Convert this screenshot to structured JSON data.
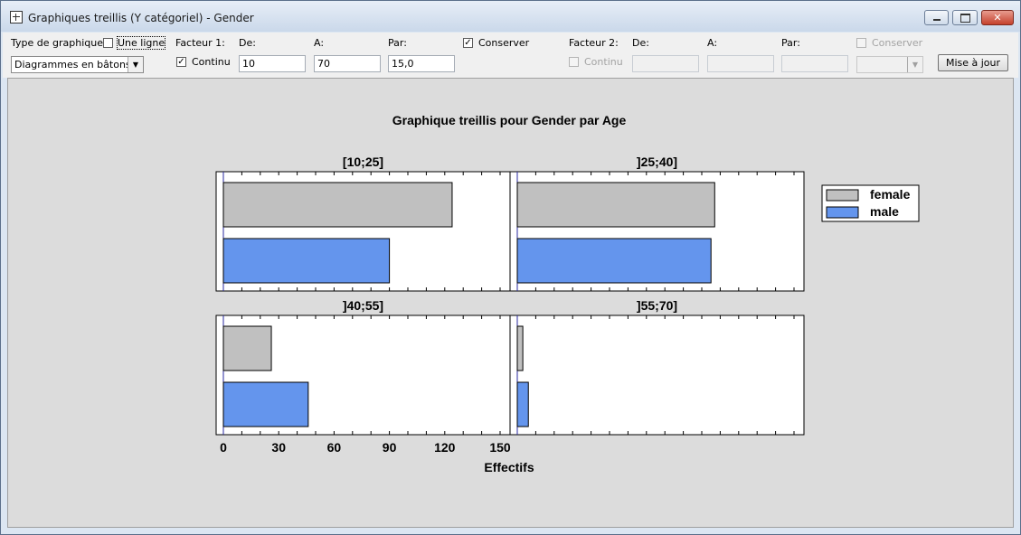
{
  "window": {
    "title": "Graphiques treillis (Y catégoriel) - Gender"
  },
  "toolbar": {
    "type_label": "Type de graphique:",
    "une_ligne_label": "Une ligne",
    "une_ligne_checked": false,
    "chart_type_value": "Diagrammes en bâtons",
    "facteur1": {
      "label": "Facteur 1:",
      "continu_label": "Continu",
      "continu_checked": true,
      "de_label": "De:",
      "de_value": "10",
      "a_label": "A:",
      "a_value": "70",
      "par_label": "Par:",
      "par_value": "15,0",
      "conserver_label": "Conserver",
      "conserver_checked": true
    },
    "facteur2": {
      "label": "Facteur 2:",
      "continu_label": "Continu",
      "continu_checked": false,
      "de_label": "De:",
      "de_value": "",
      "a_label": "A:",
      "a_value": "",
      "par_label": "Par:",
      "par_value": "",
      "conserver_label": "Conserver",
      "conserver_checked": false,
      "select_value": ""
    },
    "update_label": "Mise à jour"
  },
  "colors": {
    "female": "#c0c0c0",
    "male": "#6495ed",
    "panel_bg": "#ffffff",
    "plot_bg": "#dcdcdc"
  },
  "chart_data": {
    "type": "bar",
    "orientation": "horizontal",
    "title": "Graphique treillis pour Gender par Age",
    "xlabel": "Effectifs",
    "xlim": [
      0,
      150
    ],
    "xticks": [
      "0",
      "30",
      "60",
      "90",
      "120",
      "150"
    ],
    "legend": {
      "placement": "right",
      "entries": [
        "female",
        "male"
      ]
    },
    "categories": [
      "female",
      "male"
    ],
    "panels": [
      {
        "label": "[10;25]",
        "values": [
          124,
          90
        ]
      },
      {
        "label": "]25;40]",
        "values": [
          107,
          105
        ]
      },
      {
        "label": "]40;55]",
        "values": [
          26,
          46
        ]
      },
      {
        "label": "]55;70]",
        "values": [
          3,
          6
        ]
      }
    ]
  }
}
